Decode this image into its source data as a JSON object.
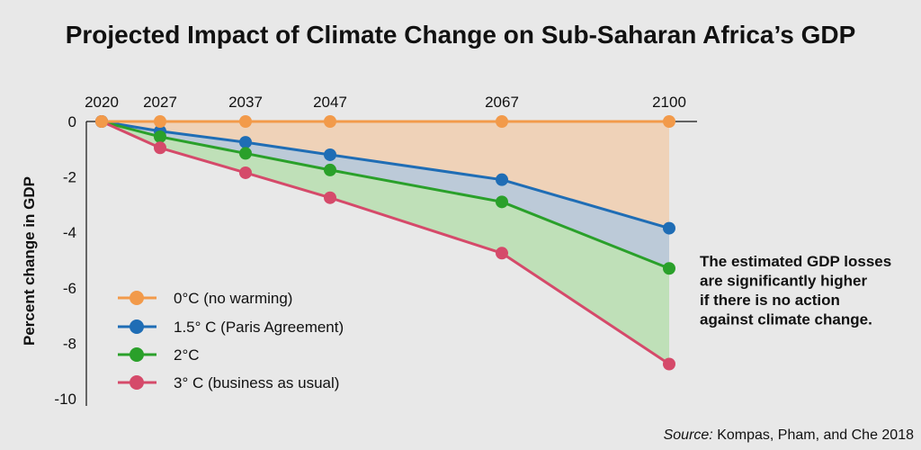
{
  "chart_data": {
    "type": "line",
    "title": "Projected Impact of Climate Change on Sub-Saharan Africa’s GDP",
    "ylabel": "Percent change in GDP",
    "xlabel": "",
    "x": [
      2020,
      2027,
      2037,
      2047,
      2067,
      2100
    ],
    "x_tick_labels": [
      "2020",
      "2027",
      "2037",
      "2047",
      "2067",
      "2100"
    ],
    "y_ticks": [
      0,
      -2,
      -4,
      -6,
      -8,
      -10
    ],
    "y_tick_labels": [
      "0",
      "-2",
      "-4",
      "-6",
      "-8",
      "-10"
    ],
    "ylim": [
      -10,
      0
    ],
    "x_axis_position": "top",
    "grid": false,
    "legend_position": "bottom-left",
    "series": [
      {
        "name": "0°C (no warming)",
        "color": "#f29a4a",
        "fill": "#efd2b8",
        "values": [
          0,
          0,
          0,
          0,
          0,
          0
        ]
      },
      {
        "name": "1.5° C (Paris Agreement)",
        "color": "#1f6db5",
        "fill": "#bccad8",
        "values": [
          0,
          -0.35,
          -0.75,
          -1.2,
          -2.1,
          -3.85
        ]
      },
      {
        "name": "2°C",
        "color": "#2aa02a",
        "fill": "#bfe0b8",
        "values": [
          0,
          -0.55,
          -1.15,
          -1.75,
          -2.9,
          -5.3
        ]
      },
      {
        "name": "3° C (business as usual)",
        "color": "#d54a6a",
        "fill": null,
        "values": [
          0,
          -0.95,
          -1.85,
          -2.75,
          -4.75,
          -8.75
        ]
      }
    ],
    "annotation": [
      "The estimated GDP losses",
      "are significantly higher",
      "if there is no action",
      "against climate change."
    ],
    "source": {
      "label": "Source:",
      "text": " Kompas, Pham, and Che 2018"
    }
  }
}
